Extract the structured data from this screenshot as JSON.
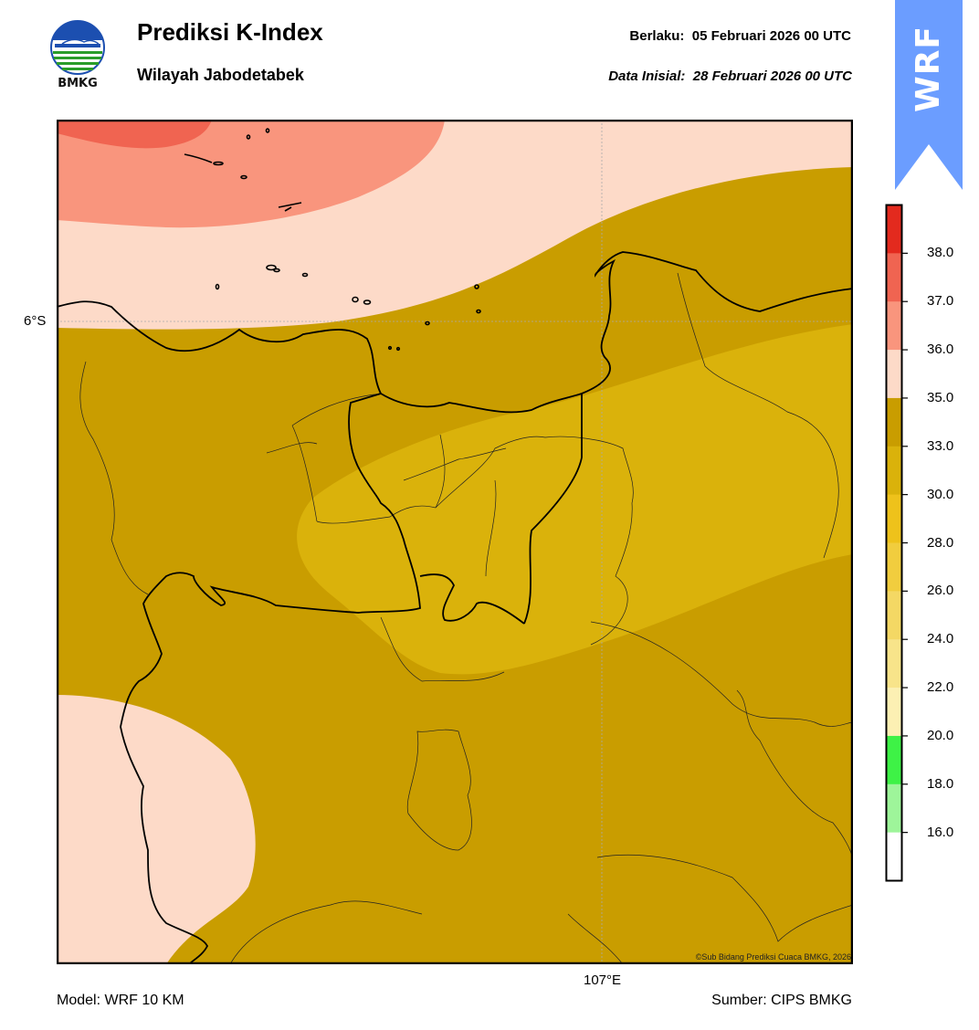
{
  "header": {
    "logo_text": "BMKG",
    "title": "Prediksi K-Index",
    "subtitle": "Wilayah Jabodetabek",
    "valid": "Berlaku:  05 Februari 2026 00 UTC",
    "init": "Data Inisial:  28 Februari 2026 00 UTC",
    "badge": "WRF"
  },
  "map": {
    "lat_label": "6°S",
    "lon_label": "107°E",
    "credit": "©Sub Bidang Prediksi Cuaca BMKG, 2026",
    "zone_colors": {
      "k_35_36": "#fddac8",
      "k_36_37": "#f9957d",
      "k_37_38": "#f06451",
      "k_33_35": "#c99d00",
      "k_30_33": "#dab20b"
    }
  },
  "colorbar": {
    "labels": [
      "38.0",
      "37.0",
      "36.0",
      "35.0",
      "33.0",
      "30.0",
      "28.0",
      "26.0",
      "24.0",
      "22.0",
      "20.0",
      "18.0",
      "16.0"
    ],
    "bands": [
      "#e32a1e",
      "#f06451",
      "#f9957d",
      "#fddac8",
      "#c99d00",
      "#dab20b",
      "#eec21b",
      "#f1cd3e",
      "#f4d864",
      "#f8e48a",
      "#fcf0b3",
      "#3ef246",
      "#9ef59a",
      "#ffffff"
    ]
  },
  "footer": {
    "model": "Model: WRF 10 KM",
    "source": "Sumber: CIPS BMKG"
  }
}
